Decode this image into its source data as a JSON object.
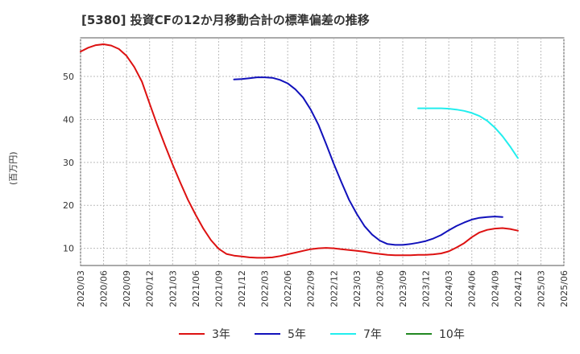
{
  "title": "[5380]  投資CFの12か月移動合計の標準偏差の推移",
  "ylabel": "(百万円)",
  "colors": {
    "grid": "#bbbbbb",
    "axis": "#555555",
    "text": "#333333"
  },
  "chart_data": {
    "type": "line",
    "title": "[5380]  投資CFの12か月移動合計の標準偏差の推移",
    "ylabel": "(百万円)",
    "xlabel": "",
    "ylim": [
      6,
      59
    ],
    "yticks": [
      10,
      20,
      30,
      40,
      50
    ],
    "x_ticks": [
      "2020/03",
      "2020/06",
      "2020/09",
      "2020/12",
      "2021/03",
      "2021/06",
      "2021/09",
      "2021/12",
      "2022/03",
      "2022/06",
      "2022/09",
      "2022/12",
      "2023/03",
      "2023/06",
      "2023/09",
      "2023/12",
      "2024/03",
      "2024/06",
      "2024/09",
      "2024/12",
      "2025/03",
      "2025/06"
    ],
    "grid": true,
    "legend_position": "bottom",
    "series": [
      {
        "name": "3年",
        "color": "#dd1111",
        "points": [
          [
            "2020/03",
            55.8
          ],
          [
            "2020/04",
            56.7
          ],
          [
            "2020/05",
            57.3
          ],
          [
            "2020/06",
            57.5
          ],
          [
            "2020/07",
            57.2
          ],
          [
            "2020/08",
            56.4
          ],
          [
            "2020/09",
            54.8
          ],
          [
            "2020/10",
            52.2
          ],
          [
            "2020/11",
            48.8
          ],
          [
            "2020/12",
            43.7
          ],
          [
            "2021/01",
            38.7
          ],
          [
            "2021/02",
            34.0
          ],
          [
            "2021/03",
            29.5
          ],
          [
            "2021/04",
            25.3
          ],
          [
            "2021/05",
            21.3
          ],
          [
            "2021/06",
            17.8
          ],
          [
            "2021/07",
            14.6
          ],
          [
            "2021/08",
            11.9
          ],
          [
            "2021/09",
            9.9
          ],
          [
            "2021/10",
            8.7
          ],
          [
            "2021/11",
            8.3
          ],
          [
            "2021/12",
            8.1
          ],
          [
            "2022/01",
            7.9
          ],
          [
            "2022/02",
            7.8
          ],
          [
            "2022/03",
            7.8
          ],
          [
            "2022/04",
            7.9
          ],
          [
            "2022/05",
            8.2
          ],
          [
            "2022/06",
            8.6
          ],
          [
            "2022/07",
            9.0
          ],
          [
            "2022/08",
            9.4
          ],
          [
            "2022/09",
            9.8
          ],
          [
            "2022/10",
            10.0
          ],
          [
            "2022/11",
            10.1
          ],
          [
            "2022/12",
            10.0
          ],
          [
            "2023/01",
            9.8
          ],
          [
            "2023/02",
            9.6
          ],
          [
            "2023/03",
            9.4
          ],
          [
            "2023/04",
            9.2
          ],
          [
            "2023/05",
            8.9
          ],
          [
            "2023/06",
            8.7
          ],
          [
            "2023/07",
            8.5
          ],
          [
            "2023/08",
            8.4
          ],
          [
            "2023/09",
            8.4
          ],
          [
            "2023/10",
            8.4
          ],
          [
            "2023/11",
            8.5
          ],
          [
            "2023/12",
            8.5
          ],
          [
            "2024/01",
            8.6
          ],
          [
            "2024/02",
            8.8
          ],
          [
            "2024/03",
            9.3
          ],
          [
            "2024/04",
            10.2
          ],
          [
            "2024/05",
            11.2
          ],
          [
            "2024/06",
            12.6
          ],
          [
            "2024/07",
            13.7
          ],
          [
            "2024/08",
            14.3
          ],
          [
            "2024/09",
            14.6
          ],
          [
            "2024/10",
            14.7
          ],
          [
            "2024/11",
            14.5
          ],
          [
            "2024/12",
            14.1
          ]
        ]
      },
      {
        "name": "5年",
        "color": "#1111bb",
        "points": [
          [
            "2021/11",
            49.3
          ],
          [
            "2021/12",
            49.4
          ],
          [
            "2022/01",
            49.6
          ],
          [
            "2022/02",
            49.8
          ],
          [
            "2022/03",
            49.8
          ],
          [
            "2022/04",
            49.7
          ],
          [
            "2022/05",
            49.2
          ],
          [
            "2022/06",
            48.4
          ],
          [
            "2022/07",
            47.0
          ],
          [
            "2022/08",
            45.1
          ],
          [
            "2022/09",
            42.3
          ],
          [
            "2022/10",
            38.8
          ],
          [
            "2022/11",
            34.3
          ],
          [
            "2022/12",
            29.7
          ],
          [
            "2023/01",
            25.4
          ],
          [
            "2023/02",
            21.3
          ],
          [
            "2023/03",
            18.0
          ],
          [
            "2023/04",
            15.2
          ],
          [
            "2023/05",
            13.2
          ],
          [
            "2023/06",
            11.8
          ],
          [
            "2023/07",
            11.0
          ],
          [
            "2023/08",
            10.8
          ],
          [
            "2023/09",
            10.8
          ],
          [
            "2023/10",
            11.0
          ],
          [
            "2023/11",
            11.3
          ],
          [
            "2023/12",
            11.7
          ],
          [
            "2024/01",
            12.3
          ],
          [
            "2024/02",
            13.1
          ],
          [
            "2024/03",
            14.2
          ],
          [
            "2024/04",
            15.2
          ],
          [
            "2024/05",
            16.0
          ],
          [
            "2024/06",
            16.7
          ],
          [
            "2024/07",
            17.1
          ],
          [
            "2024/08",
            17.3
          ],
          [
            "2024/09",
            17.4
          ],
          [
            "2024/10",
            17.3
          ]
        ]
      },
      {
        "name": "7年",
        "color": "#22eeee",
        "points": [
          [
            "2023/11",
            42.6
          ],
          [
            "2023/12",
            42.6
          ],
          [
            "2024/01",
            42.6
          ],
          [
            "2024/02",
            42.6
          ],
          [
            "2024/03",
            42.5
          ],
          [
            "2024/04",
            42.3
          ],
          [
            "2024/05",
            42.0
          ],
          [
            "2024/06",
            41.5
          ],
          [
            "2024/07",
            40.8
          ],
          [
            "2024/08",
            39.7
          ],
          [
            "2024/09",
            38.1
          ],
          [
            "2024/10",
            36.1
          ],
          [
            "2024/11",
            33.7
          ],
          [
            "2024/12",
            31.0
          ]
        ]
      },
      {
        "name": "10年",
        "color": "#228822",
        "points": []
      }
    ]
  }
}
